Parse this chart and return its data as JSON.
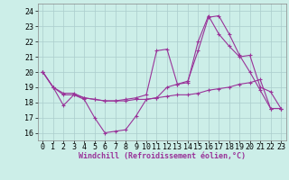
{
  "background_color": "#cceee8",
  "grid_color": "#aacccc",
  "line_color": "#993399",
  "xlabel": "Windchill (Refroidissement éolien,°C)",
  "xlim": [
    -0.5,
    23.5
  ],
  "ylim": [
    15.5,
    24.5
  ],
  "yticks": [
    16,
    17,
    18,
    19,
    20,
    21,
    22,
    23,
    24
  ],
  "xticks": [
    0,
    1,
    2,
    3,
    4,
    5,
    6,
    7,
    8,
    9,
    10,
    11,
    12,
    13,
    14,
    15,
    16,
    17,
    18,
    19,
    20,
    21,
    22,
    23
  ],
  "line1_x": [
    0,
    1,
    2,
    3,
    4,
    5,
    6,
    7,
    8,
    9,
    10,
    11,
    12,
    13,
    14,
    15,
    16,
    17,
    18,
    19,
    20,
    21,
    22,
    23
  ],
  "line1_y": [
    20.0,
    19.0,
    17.8,
    18.5,
    18.2,
    17.0,
    16.0,
    16.1,
    16.2,
    17.1,
    18.2,
    18.3,
    19.0,
    19.2,
    19.4,
    21.4,
    23.6,
    23.7,
    22.5,
    21.1,
    20.0,
    18.8,
    17.6,
    17.6
  ],
  "line2_x": [
    0,
    1,
    2,
    3,
    4,
    5,
    6,
    7,
    8,
    9,
    10,
    11,
    12,
    13,
    14,
    15,
    16,
    17,
    18,
    19,
    20,
    21,
    22,
    23
  ],
  "line2_y": [
    20.0,
    19.0,
    18.5,
    18.5,
    18.3,
    18.2,
    18.1,
    18.1,
    18.1,
    18.2,
    18.2,
    18.3,
    18.4,
    18.5,
    18.5,
    18.6,
    18.8,
    18.9,
    19.0,
    19.2,
    19.3,
    19.5,
    17.6,
    17.6
  ],
  "line3_x": [
    0,
    1,
    2,
    3,
    4,
    5,
    6,
    7,
    8,
    9,
    10,
    11,
    12,
    13,
    14,
    15,
    16,
    17,
    18,
    19,
    20,
    21,
    22,
    23
  ],
  "line3_y": [
    20.0,
    19.0,
    18.6,
    18.6,
    18.3,
    18.2,
    18.1,
    18.1,
    18.2,
    18.3,
    18.5,
    21.4,
    21.5,
    19.2,
    19.3,
    22.0,
    23.7,
    22.5,
    21.7,
    21.0,
    21.1,
    19.0,
    18.7,
    17.6
  ],
  "tick_fontsize": 6,
  "xlabel_fontsize": 6,
  "lw": 0.8,
  "ms": 2.5
}
